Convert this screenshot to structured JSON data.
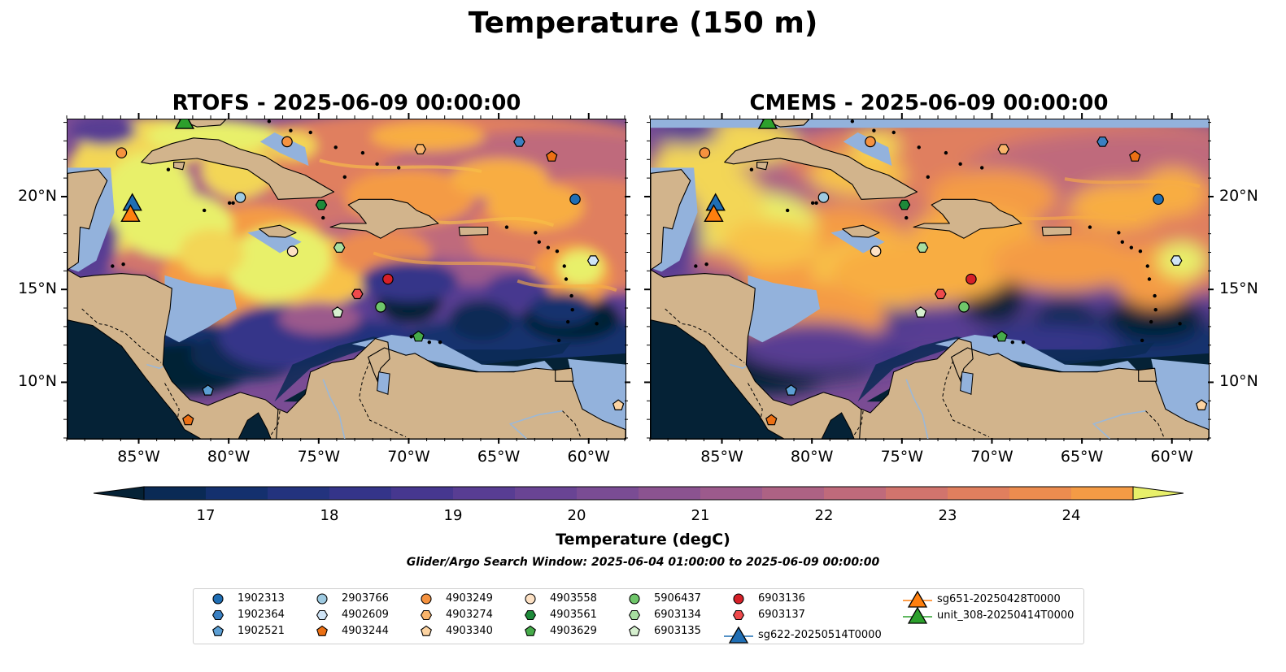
{
  "figure": {
    "suptitle": "Temperature (150 m)",
    "search_window": "Glider/Argo Search Window: 2025-06-04 01:00:00 to 2025-06-09 00:00:00"
  },
  "panels": [
    {
      "id": "rtofs",
      "title": "RTOFS - 2025-06-09 00:00:00",
      "lat_labels_side": "left"
    },
    {
      "id": "cmems",
      "title": "CMEMS - 2025-06-09 00:00:00",
      "lat_labels_side": "right"
    }
  ],
  "axes": {
    "lon_ticks": [
      "85°W",
      "80°W",
      "75°W",
      "70°W",
      "65°W",
      "60°W"
    ],
    "lon_values": [
      -85,
      -80,
      -75,
      -70,
      -65,
      -60
    ],
    "lat_ticks": [
      "20°N",
      "15°N",
      "10°N"
    ],
    "lat_values": [
      20,
      15,
      10
    ],
    "lon_range": [
      -89,
      -58
    ],
    "lat_range": [
      7,
      24.2
    ]
  },
  "colorbar": {
    "label": "Temperature (degC)",
    "ticks": [
      "17",
      "18",
      "19",
      "20",
      "21",
      "22",
      "23",
      "24"
    ],
    "tick_values": [
      17,
      18,
      19,
      20,
      21,
      22,
      23,
      24
    ],
    "range": [
      16.5,
      24.5
    ],
    "step": 0.5,
    "extend": "both",
    "colors": [
      "#052236",
      "#0a2a55",
      "#14306e",
      "#23337e",
      "#343489",
      "#46378f",
      "#583d93",
      "#694494",
      "#7a4c94",
      "#8b5390",
      "#9c5a8c",
      "#ad6284",
      "#bf6a7b",
      "#d1746d",
      "#e07f5e",
      "#ec8c4f",
      "#f49b45",
      "#f8ad42",
      "#f8c248",
      "#f3d656",
      "#e8f06a"
    ]
  },
  "colors": {
    "land": "#d2b48c",
    "ocean_mask": "#93b2dc",
    "coast": "#000000"
  },
  "floats": [
    {
      "id": "1902313",
      "lon": -60.8,
      "lat": 19.9,
      "marker": "circle",
      "color": "#1f6eb4"
    },
    {
      "id": "1902364",
      "lon": -63.9,
      "lat": 23.0,
      "marker": "hexagon",
      "color": "#3a80c2"
    },
    {
      "id": "1902521",
      "lon": -81.2,
      "lat": 9.6,
      "marker": "pentagon",
      "color": "#5c9fd4"
    },
    {
      "id": "2903766",
      "lon": -79.4,
      "lat": 20.0,
      "marker": "circle",
      "color": "#9ecae1"
    },
    {
      "id": "4902609",
      "lon": -59.8,
      "lat": 16.6,
      "marker": "hexagon",
      "color": "#cfe4f6"
    },
    {
      "id": "4903244",
      "lon": -82.3,
      "lat": 8.0,
      "marker": "pentagon",
      "color": "#ec7014"
    },
    {
      "id": "4903249",
      "lon": -76.8,
      "lat": 23.0,
      "marker": "circle",
      "color": "#f5923f"
    },
    {
      "id": "4903274",
      "lon": -69.4,
      "lat": 22.6,
      "marker": "hexagon",
      "color": "#f8b46b"
    },
    {
      "id": "4903340",
      "lon": -58.4,
      "lat": 8.8,
      "marker": "pentagon",
      "color": "#fcd3a1"
    },
    {
      "id": "4903558",
      "lon": -76.5,
      "lat": 17.1,
      "marker": "circle",
      "color": "#fde1c4"
    },
    {
      "id": "4903561",
      "lon": -74.9,
      "lat": 19.6,
      "marker": "hexagon",
      "color": "#1e8a3a"
    },
    {
      "id": "4903629",
      "lon": -69.5,
      "lat": 12.5,
      "marker": "pentagon",
      "color": "#46ab4a"
    },
    {
      "id": "5906437",
      "lon": -71.6,
      "lat": 14.1,
      "marker": "circle",
      "color": "#6fc66a"
    },
    {
      "id": "6903134",
      "lon": -73.9,
      "lat": 17.3,
      "marker": "hexagon",
      "color": "#a7dea0"
    },
    {
      "id": "6903135",
      "lon": -74.0,
      "lat": 13.8,
      "marker": "pentagon",
      "color": "#d6f0cf"
    },
    {
      "id": "6903136",
      "lon": -71.2,
      "lat": 15.6,
      "marker": "circle",
      "color": "#d62028"
    },
    {
      "id": "6903137",
      "lon": -72.9,
      "lat": 14.8,
      "marker": "hexagon",
      "color": "#ef4a4c"
    },
    {
      "id": "4903240",
      "lon": -62.1,
      "lat": 22.2,
      "marker": "pentagon",
      "color": "#ec7014",
      "legend": false
    },
    {
      "id": "4903255",
      "lon": -86.0,
      "lat": 22.4,
      "marker": "circle",
      "color": "#f5923f",
      "legend": false
    }
  ],
  "gliders": [
    {
      "id": "sg622-20250514T0000",
      "lon": -85.4,
      "lat": 19.7,
      "color": "#1f6eb4"
    },
    {
      "id": "sg651-20250428T0000",
      "lon": -85.5,
      "lat": 19.1,
      "color": "#ff7f0e"
    },
    {
      "id": "unit_308-20250414T0000",
      "lon": -82.5,
      "lat": 24.1,
      "color": "#2ca02c"
    }
  ]
}
